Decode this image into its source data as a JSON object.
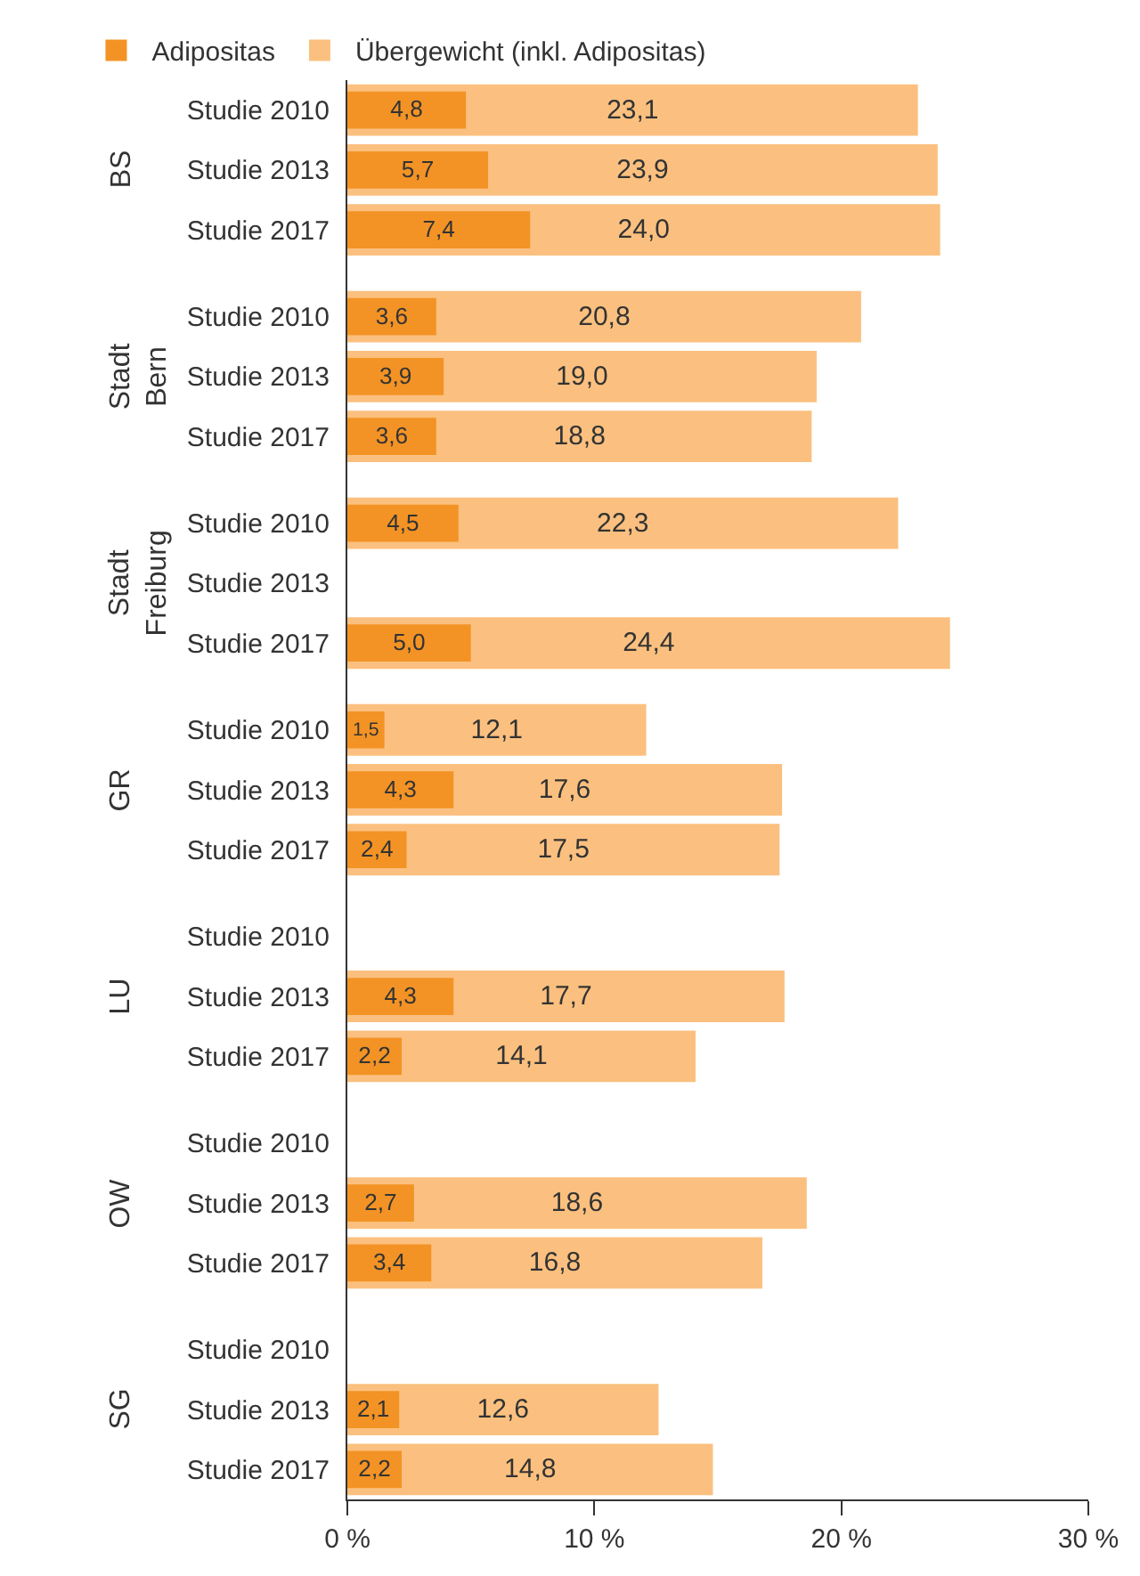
{
  "chart_data": {
    "type": "bar",
    "orientation": "horizontal",
    "categories": [
      "Studie 2010",
      "Studie 2013",
      "Studie 2017",
      "Studie 2010",
      "Studie 2013",
      "Studie 2017",
      "Studie 2010",
      "Studie 2013",
      "Studie 2017",
      "Studie 2010",
      "Studie 2013",
      "Studie 2017",
      "Studie 2010",
      "Studie 2013",
      "Studie 2017",
      "Studie 2010",
      "Studie 2013",
      "Studie 2017",
      "Studie 2010",
      "Studie 2013",
      "Studie 2017"
    ],
    "series": [
      {
        "name": "Übergewicht (inkl. Adipositas)",
        "color": "#fbc07f",
        "values": [
          23.1,
          23.9,
          24.0,
          20.8,
          19.0,
          18.8,
          22.3,
          null,
          24.4,
          12.1,
          17.6,
          17.5,
          null,
          17.7,
          14.1,
          null,
          18.6,
          16.8,
          null,
          12.6,
          14.8
        ],
        "value_labels": [
          "23,1",
          "23,9",
          "24,0",
          "20,8",
          "19,0",
          "18,8",
          "22,3",
          null,
          "24,4",
          "12,1",
          "17,6",
          "17,5",
          null,
          "17,7",
          "14,1",
          null,
          "18,6",
          "16,8",
          null,
          "12,6",
          "14,8"
        ]
      },
      {
        "name": "Adipositas",
        "color": "#f39325",
        "values": [
          4.8,
          5.7,
          7.4,
          3.6,
          3.9,
          3.6,
          4.5,
          null,
          5.0,
          1.5,
          4.3,
          2.4,
          null,
          4.3,
          2.2,
          null,
          2.7,
          3.4,
          null,
          2.1,
          2.2
        ],
        "value_labels": [
          "4,8",
          "5,7",
          "7,4",
          "3,6",
          "3,9",
          "3,6",
          "4,5",
          null,
          "5,0",
          "1,5",
          "4,3",
          "2,4",
          null,
          "4,3",
          "2,2",
          null,
          "2,7",
          "3,4",
          null,
          "2,1",
          "2,2"
        ]
      }
    ],
    "annotations": [
      "BS",
      "Stadt Bern",
      "Stadt Freiburg",
      "GR",
      "LU",
      "OW",
      "SG"
    ],
    "xlim": [
      0,
      30
    ],
    "xticks": [
      {
        "value": 0,
        "label": "0 %"
      },
      {
        "value": 10,
        "label": "10 %"
      },
      {
        "value": 20,
        "label": "20 %"
      },
      {
        "value": 30,
        "label": "30 %"
      }
    ],
    "legend": "top left"
  }
}
